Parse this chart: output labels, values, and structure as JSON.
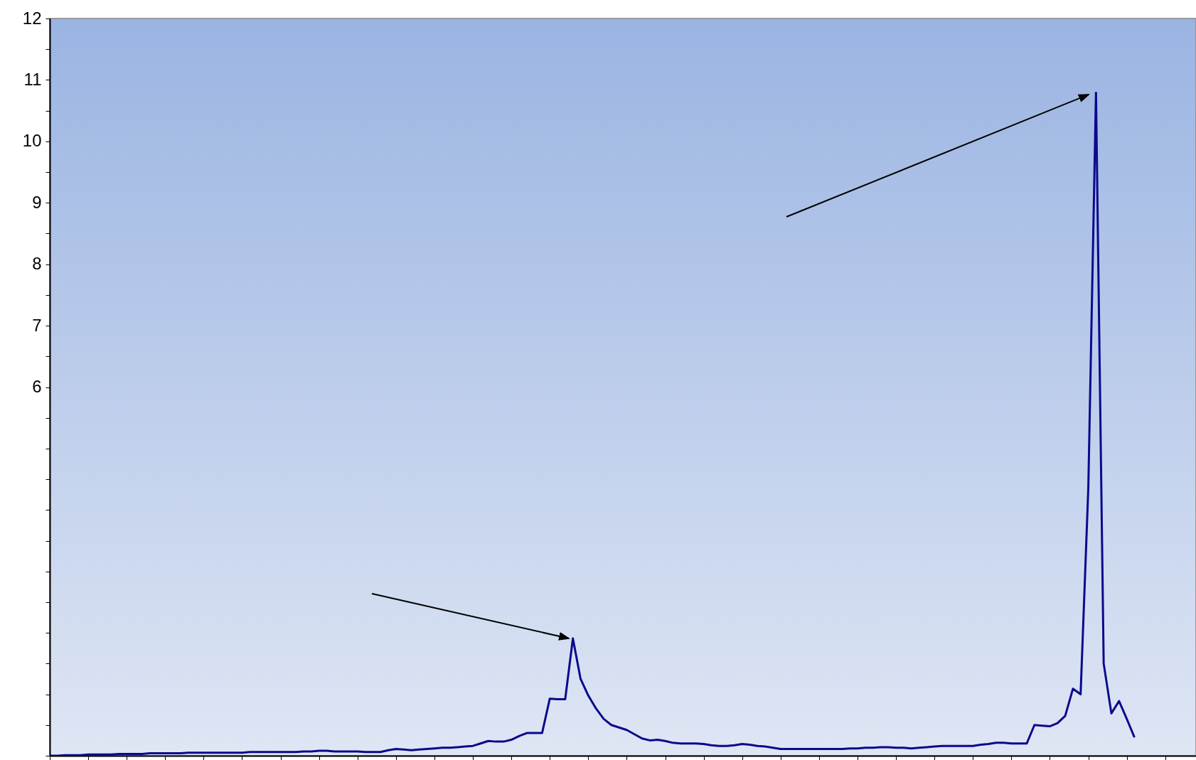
{
  "chart_data": {
    "type": "line",
    "color": "#0a0a8c",
    "tick_labels": "y",
    "categories": [
      null,
      null,
      null,
      null,
      null,
      null,
      null,
      null,
      null,
      null,
      null,
      null,
      null,
      null,
      null,
      null,
      null,
      null,
      null,
      null,
      null,
      null,
      null,
      null,
      null,
      null,
      null,
      null,
      null,
      null,
      null,
      null,
      null,
      null,
      null,
      null,
      null,
      null,
      null,
      null,
      null,
      null,
      null,
      null,
      null,
      null,
      null,
      null,
      null,
      null,
      null,
      null,
      null,
      null,
      null,
      null,
      null,
      null,
      null,
      null,
      null,
      null,
      null,
      null,
      null,
      null,
      null,
      null,
      null,
      null,
      null,
      null,
      null,
      null,
      null,
      null,
      null,
      null,
      null,
      null,
      null,
      null,
      null,
      null,
      null,
      null,
      null,
      null,
      null,
      null,
      null,
      null,
      null,
      null,
      null,
      null,
      null,
      null,
      null,
      null,
      null,
      null,
      null,
      null,
      null,
      null,
      null,
      null,
      null,
      null,
      null,
      null,
      null,
      null,
      null,
      null,
      null,
      null,
      null,
      null,
      null,
      null,
      null,
      null,
      null,
      null,
      null,
      null,
      null,
      null,
      null,
      null,
      null,
      null,
      null,
      null,
      null,
      null,
      null,
      null,
      null,
      null,
      null,
      null,
      null,
      null,
      null,
      null,
      null,
      null
    ],
    "values": [
      0,
      0,
      0.01,
      0.01,
      0.01,
      0.02,
      0.02,
      0.02,
      0.02,
      0.03,
      0.03,
      0.03,
      0.03,
      0.04,
      0.04,
      0.04,
      0.04,
      0.04,
      0.05,
      0.05,
      0.05,
      0.05,
      0.05,
      0.05,
      0.05,
      0.05,
      0.06,
      0.06,
      0.06,
      0.06,
      0.06,
      0.06,
      0.06,
      0.07,
      0.07,
      0.08,
      0.08,
      0.07,
      0.07,
      0.07,
      0.07,
      0.06,
      0.06,
      0.06,
      0.09,
      0.11,
      0.1,
      0.09,
      0.1,
      0.11,
      0.12,
      0.13,
      0.13,
      0.14,
      0.15,
      0.16,
      0.2,
      0.24,
      0.23,
      0.23,
      0.26,
      0.32,
      0.37,
      0.37,
      0.37,
      0.93,
      0.92,
      0.92,
      1.91,
      1.25,
      0.98,
      0.77,
      0.6,
      0.5,
      0.46,
      0.42,
      0.35,
      0.28,
      0.25,
      0.26,
      0.24,
      0.21,
      0.2,
      0.2,
      0.2,
      0.19,
      0.17,
      0.16,
      0.16,
      0.17,
      0.19,
      0.18,
      0.16,
      0.15,
      0.13,
      0.11,
      0.11,
      0.11,
      0.11,
      0.11,
      0.11,
      0.11,
      0.11,
      0.11,
      0.12,
      0.12,
      0.13,
      0.13,
      0.14,
      0.14,
      0.13,
      0.13,
      0.12,
      0.13,
      0.14,
      0.15,
      0.16,
      0.16,
      0.16,
      0.16,
      0.16,
      0.18,
      0.19,
      0.21,
      0.21,
      0.2,
      0.2,
      0.2,
      0.5,
      0.49,
      0.48,
      0.53,
      0.65,
      1.09,
      1,
      4.35,
      10.79,
      1.5,
      0.69,
      0.89,
      0.6,
      0.3,
      null,
      null,
      null,
      null,
      null,
      null,
      null,
      null
    ],
    "ylim": [
      0,
      12
    ],
    "yticks": [
      {
        "value": 0,
        "label": null
      },
      {
        "value": 0.5,
        "label": null
      },
      {
        "value": 1,
        "label": null
      },
      {
        "value": 1.5,
        "label": null
      },
      {
        "value": 2,
        "label": null
      },
      {
        "value": 2.5,
        "label": null
      },
      {
        "value": 3,
        "label": null
      },
      {
        "value": 3.5,
        "label": null
      },
      {
        "value": 4,
        "label": null
      },
      {
        "value": 4.5,
        "label": null
      },
      {
        "value": 5,
        "label": null
      },
      {
        "value": 5.5,
        "label": null
      },
      6,
      {
        "value": 6.5,
        "label": null
      },
      7,
      {
        "value": 7.5,
        "label": null
      },
      8,
      {
        "value": 8.5,
        "label": null
      },
      9,
      {
        "value": 9.5,
        "label": null
      },
      10,
      {
        "value": 10.5,
        "label": null
      },
      11,
      {
        "value": 11.5,
        "label": null
      },
      12
    ]
  }
}
